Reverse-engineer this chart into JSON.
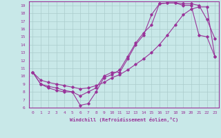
{
  "xlabel": "Windchill (Refroidissement éolien,°C)",
  "ylabel": "",
  "xlim": [
    -0.5,
    23.5
  ],
  "ylim": [
    6,
    19.5
  ],
  "xticks": [
    0,
    1,
    2,
    3,
    4,
    5,
    6,
    7,
    8,
    9,
    10,
    11,
    12,
    13,
    14,
    15,
    16,
    17,
    18,
    19,
    20,
    21,
    22,
    23
  ],
  "yticks": [
    6,
    7,
    8,
    9,
    10,
    11,
    12,
    13,
    14,
    15,
    16,
    17,
    18,
    19
  ],
  "bg_color": "#c8e8e8",
  "line_color": "#993399",
  "grid_color": "#aacccc",
  "line1_x": [
    0,
    1,
    2,
    3,
    4,
    5,
    6,
    7,
    8,
    9,
    10,
    11,
    12,
    13,
    14,
    15,
    16,
    17,
    18,
    19,
    20,
    21,
    22,
    23
  ],
  "line1_y": [
    10.5,
    9.0,
    8.5,
    8.2,
    8.0,
    8.0,
    7.5,
    8.0,
    8.5,
    10.0,
    10.5,
    10.5,
    12.2,
    14.0,
    15.2,
    17.8,
    19.2,
    19.3,
    19.3,
    19.2,
    19.2,
    19.0,
    17.2,
    14.8
  ],
  "line2_x": [
    0,
    1,
    2,
    3,
    4,
    5,
    6,
    7,
    8,
    9,
    10,
    11,
    12,
    13,
    14,
    15,
    16,
    17,
    18,
    19,
    20,
    21,
    22,
    23
  ],
  "line2_y": [
    10.5,
    9.0,
    8.7,
    8.5,
    8.2,
    8.0,
    6.3,
    6.5,
    8.0,
    9.8,
    10.2,
    10.8,
    12.5,
    14.2,
    15.5,
    16.5,
    19.2,
    19.3,
    19.3,
    19.0,
    19.0,
    15.2,
    15.0,
    12.5
  ],
  "line3_x": [
    0,
    1,
    2,
    3,
    4,
    5,
    6,
    7,
    8,
    9,
    10,
    11,
    12,
    13,
    14,
    15,
    16,
    17,
    18,
    19,
    20,
    21,
    22,
    23
  ],
  "line3_y": [
    10.5,
    9.5,
    9.2,
    9.0,
    8.8,
    8.6,
    8.4,
    8.5,
    8.8,
    9.2,
    9.8,
    10.2,
    10.8,
    11.5,
    12.2,
    13.0,
    14.0,
    15.2,
    16.5,
    17.8,
    18.5,
    18.8,
    18.8,
    12.5
  ]
}
